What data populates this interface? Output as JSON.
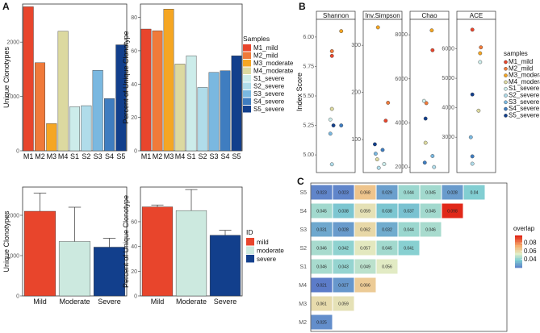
{
  "panel_labels": {
    "A": "A",
    "B": "B",
    "C": "C"
  },
  "chart_data": [
    {
      "id": "a1",
      "type": "bar",
      "categories": [
        "M1",
        "M2",
        "M3",
        "M4",
        "S1",
        "S2",
        "S3",
        "S4",
        "S5"
      ],
      "values": [
        2650,
        1620,
        500,
        2200,
        810,
        830,
        1480,
        960,
        1950
      ],
      "ylabel": "Unique Clonotypes",
      "ylim": [
        0,
        2700
      ],
      "yticks": [
        0,
        1000,
        2000
      ]
    },
    {
      "id": "a2",
      "type": "bar",
      "categories": [
        "M1",
        "M2",
        "M3",
        "M4",
        "S1",
        "S2",
        "S3",
        "S4",
        "S5"
      ],
      "values": [
        73,
        72,
        85,
        52,
        57,
        38,
        47,
        48,
        57
      ],
      "ylabel": "Percent of Unique Clonotype",
      "ylim": [
        0,
        88
      ],
      "yticks": [
        0,
        20,
        40,
        60,
        80
      ],
      "legend": {
        "title": "Samples",
        "entries": [
          "M1_mild",
          "M2_mild",
          "M3_moderate",
          "M4_moderate",
          "S1_severe",
          "S2_severe",
          "S3_severe",
          "S4_severe",
          "S5_severe"
        ],
        "colors": [
          "#e8452c",
          "#f07a3a",
          "#f5a623",
          "#dcd9a0",
          "#ccecea",
          "#b0dcea",
          "#7ab8e0",
          "#3f7dc0",
          "#123f8c"
        ]
      }
    },
    {
      "id": "a3",
      "type": "bar",
      "categories": [
        "Mild",
        "Moderate",
        "Severe"
      ],
      "values": [
        2100,
        1350,
        1210
      ],
      "errors": [
        450,
        850,
        220
      ],
      "ylabel": "Unique Clonotypes",
      "ylim": [
        0,
        2700
      ],
      "yticks": [
        0,
        1000,
        2000
      ],
      "colors": [
        "#e8452c",
        "#cce9df",
        "#123f8c"
      ]
    },
    {
      "id": "a4",
      "type": "bar",
      "categories": [
        "Mild",
        "Moderate",
        "Severe"
      ],
      "values": [
        72,
        69,
        49
      ],
      "errors": [
        1.5,
        17,
        4
      ],
      "ylabel": "Percent of Unique Clonotype",
      "ylim": [
        0,
        88
      ],
      "yticks": [
        0,
        20,
        40,
        60
      ],
      "colors": [
        "#e8452c",
        "#cce9df",
        "#123f8c"
      ],
      "legend": {
        "title": "ID",
        "entries": [
          "mild",
          "moderate",
          "severe"
        ],
        "colors": [
          "#e8452c",
          "#cce9df",
          "#123f8c"
        ]
      }
    },
    {
      "id": "b",
      "type": "scatter",
      "ylabel": "Index Score",
      "facets": [
        {
          "name": "Shannon",
          "ylim": [
            4.85,
            6.15
          ],
          "yticks": [
            5.0,
            5.25,
            5.5,
            5.75,
            6.0
          ],
          "points": [
            {
              "s": "M1_mild",
              "x": 0.4,
              "y": 5.84
            },
            {
              "s": "M2_mild",
              "x": 0.4,
              "y": 5.88
            },
            {
              "s": "M3_moderate",
              "x": 0.64,
              "y": 6.05
            },
            {
              "s": "M4_moderate",
              "x": 0.4,
              "y": 5.39
            },
            {
              "s": "S1_severe",
              "x": 0.36,
              "y": 5.3
            },
            {
              "s": "S2_severe",
              "x": 0.4,
              "y": 4.92
            },
            {
              "s": "S3_severe",
              "x": 0.36,
              "y": 5.18
            },
            {
              "s": "S4_severe",
              "x": 0.64,
              "y": 5.25
            },
            {
              "s": "S5_severe",
              "x": 0.44,
              "y": 5.25
            }
          ]
        },
        {
          "name": "Inv.Simpson",
          "ylim": [
            30,
            355
          ],
          "yticks": [
            100,
            200,
            300
          ],
          "points": [
            {
              "s": "M1_mild",
              "x": 0.58,
              "y": 140
            },
            {
              "s": "M2_mild",
              "x": 0.64,
              "y": 178
            },
            {
              "s": "M3_moderate",
              "x": 0.38,
              "y": 338
            },
            {
              "s": "M4_moderate",
              "x": 0.36,
              "y": 58
            },
            {
              "s": "S1_severe",
              "x": 0.54,
              "y": 48
            },
            {
              "s": "S2_severe",
              "x": 0.4,
              "y": 40
            },
            {
              "s": "S3_severe",
              "x": 0.32,
              "y": 70
            },
            {
              "s": "S4_severe",
              "x": 0.5,
              "y": 78
            },
            {
              "s": "S5_severe",
              "x": 0.3,
              "y": 90
            }
          ]
        },
        {
          "name": "Chao",
          "ylim": [
            1750,
            8700
          ],
          "yticks": [
            2000,
            4000,
            6000,
            8000
          ],
          "points": [
            {
              "s": "M1_mild",
              "x": 0.58,
              "y": 7300
            },
            {
              "s": "M2_mild",
              "x": 0.42,
              "y": 4900
            },
            {
              "s": "M3_moderate",
              "x": 0.56,
              "y": 8200
            },
            {
              "s": "M4_moderate",
              "x": 0.4,
              "y": 3100
            },
            {
              "s": "S1_severe",
              "x": 0.36,
              "y": 5000
            },
            {
              "s": "S2_severe",
              "x": 0.62,
              "y": 2000
            },
            {
              "s": "S3_severe",
              "x": 0.58,
              "y": 2500
            },
            {
              "s": "S4_severe",
              "x": 0.38,
              "y": 2200
            },
            {
              "s": "S5_severe",
              "x": 0.4,
              "y": 4200
            }
          ]
        },
        {
          "name": "ACE",
          "ylim": [
            1800,
            7000
          ],
          "yticks": [
            3000,
            4000,
            5000,
            6000
          ],
          "points": [
            {
              "s": "M1_mild",
              "x": 0.4,
              "y": 6650
            },
            {
              "s": "M2_mild",
              "x": 0.62,
              "y": 6050
            },
            {
              "s": "M3_moderate",
              "x": 0.6,
              "y": 5850
            },
            {
              "s": "M4_moderate",
              "x": 0.56,
              "y": 3900
            },
            {
              "s": "S1_severe",
              "x": 0.6,
              "y": 5550
            },
            {
              "s": "S2_severe",
              "x": 0.4,
              "y": 2100
            },
            {
              "s": "S3_severe",
              "x": 0.36,
              "y": 3000
            },
            {
              "s": "S4_severe",
              "x": 0.4,
              "y": 2350
            },
            {
              "s": "S5_severe",
              "x": 0.4,
              "y": 4450
            }
          ]
        }
      ],
      "legend": {
        "title": "samples",
        "entries": [
          "M1_mild",
          "M2_mild",
          "M3_moderate",
          "M4_moderate",
          "S1_severe",
          "S2_severe",
          "S3_severe",
          "S4_severe",
          "S5_severe"
        ],
        "colors": [
          "#e8452c",
          "#f07a3a",
          "#f5a623",
          "#dcd9a0",
          "#ccecea",
          "#b0dcea",
          "#7ab8e0",
          "#3f7dc0",
          "#123f8c"
        ]
      }
    },
    {
      "id": "c",
      "type": "heatmap",
      "rows": [
        "S5",
        "S4",
        "S3",
        "S2",
        "S1",
        "M4",
        "M3",
        "M2"
      ],
      "cols": [
        "M1",
        "M2",
        "M3",
        "M4",
        "S1",
        "S2",
        "S3",
        "S4",
        "S5"
      ],
      "values": [
        [
          0.023,
          0.023,
          0.068,
          0.029,
          0.044,
          0.045,
          0.028,
          0.04,
          null
        ],
        [
          0.045,
          0.038,
          0.059,
          0.038,
          0.037,
          0.045,
          0.098,
          null,
          null
        ],
        [
          0.031,
          0.028,
          0.062,
          0.032,
          0.044,
          0.046,
          null,
          null,
          null
        ],
        [
          0.046,
          0.042,
          0.057,
          0.045,
          0.041,
          null,
          null,
          null,
          null
        ],
        [
          0.046,
          0.043,
          0.049,
          0.056,
          null,
          null,
          null,
          null,
          null
        ],
        [
          0.021,
          0.027,
          0.066,
          null,
          null,
          null,
          null,
          null,
          null
        ],
        [
          0.061,
          0.059,
          null,
          null,
          null,
          null,
          null,
          null,
          null
        ],
        [
          0.025,
          null,
          null,
          null,
          null,
          null,
          null,
          null,
          null
        ]
      ],
      "legend": {
        "title": "overlap",
        "ticks": [
          0.04,
          0.06,
          0.08
        ],
        "range": [
          0.02,
          0.098
        ]
      }
    }
  ]
}
